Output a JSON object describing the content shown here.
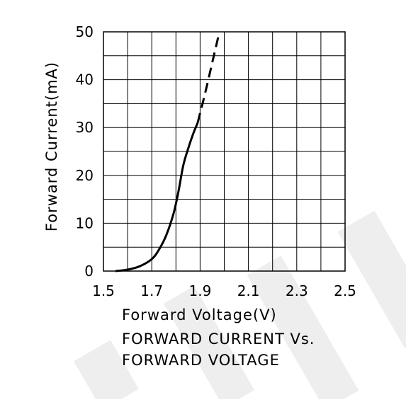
{
  "chart_data": {
    "type": "line",
    "title": "",
    "xlabel": "Forward Voltage(V)",
    "ylabel": "Forward Current(mA)",
    "caption_lines": [
      "FORWARD CURRENT Vs.",
      "FORWARD VOLTAGE"
    ],
    "xlim": [
      1.5,
      2.5
    ],
    "ylim": [
      0,
      50
    ],
    "x_tick_labels": [
      "1.5",
      "1.7",
      "1.9",
      "2.1",
      "2.3",
      "2.5"
    ],
    "x_tick_values": [
      1.5,
      1.7,
      1.9,
      2.1,
      2.3,
      2.5
    ],
    "y_tick_labels": [
      "0",
      "10",
      "20",
      "30",
      "40",
      "50"
    ],
    "y_tick_values": [
      0,
      10,
      20,
      30,
      40,
      50
    ],
    "grid": true,
    "x_grid_step": 0.1,
    "y_grid_step": 5,
    "series": [
      {
        "style": "solid",
        "x": [
          1.55,
          1.6,
          1.65,
          1.7,
          1.73,
          1.76,
          1.79,
          1.81,
          1.83,
          1.85,
          1.87,
          1.89
        ],
        "y": [
          0,
          0.3,
          1.0,
          2.5,
          4.5,
          7.5,
          12.0,
          16.5,
          22.0,
          25.5,
          28.5,
          31.0
        ]
      },
      {
        "style": "dashed",
        "x": [
          1.89,
          1.92,
          1.95,
          1.98
        ],
        "y": [
          31.0,
          37.0,
          43.5,
          50.0
        ]
      }
    ],
    "colors": {
      "line": "#000000",
      "grid": "#000000",
      "watermark": "#eeeeee"
    }
  }
}
